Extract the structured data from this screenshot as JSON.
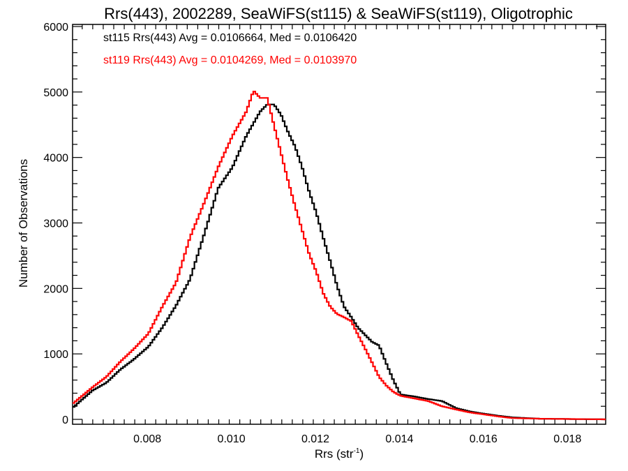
{
  "chart_data": {
    "type": "line",
    "style": "step-histogram",
    "title": "Rrs(443), 2002289, SeaWiFS(st115) & SeaWiFS(st119), Oligotrophic",
    "xlabel_base": "Rrs (str",
    "xlabel_sup": "-1",
    "xlabel_close": ")",
    "ylabel": "Number of Observations",
    "xlim": [
      0.00622,
      0.01891
    ],
    "ylim": [
      0,
      6000
    ],
    "x_ticks": [
      0.008,
      0.01,
      0.012,
      0.014,
      0.016,
      0.018
    ],
    "x_tick_labels": [
      "0.008",
      "0.010",
      "0.012",
      "0.014",
      "0.016",
      "0.018"
    ],
    "y_ticks": [
      0,
      1000,
      2000,
      3000,
      4000,
      5000,
      6000
    ],
    "y_tick_labels": [
      "0",
      "1000",
      "2000",
      "3000",
      "4000",
      "5000",
      "6000"
    ],
    "grid": false,
    "legend_position": "top-left",
    "annotations": [
      {
        "text": "st115 Rrs(443) Avg = 0.0106664, Med = 0.0106420",
        "color": "#000000"
      },
      {
        "text": "st119 Rrs(443) Avg = 0.0104269, Med = 0.0103970",
        "color": "#ff0000"
      }
    ],
    "series": [
      {
        "name": "st115",
        "color": "#000000",
        "x": [
          0.00622,
          0.00667,
          0.007,
          0.00733,
          0.00766,
          0.008,
          0.00833,
          0.00866,
          0.00899,
          0.00933,
          0.00966,
          0.01,
          0.01033,
          0.01066,
          0.01083,
          0.01099,
          0.01116,
          0.01133,
          0.01149,
          0.01166,
          0.01183,
          0.012,
          0.01216,
          0.01233,
          0.01249,
          0.01266,
          0.01283,
          0.01299,
          0.01316,
          0.01333,
          0.01349,
          0.01366,
          0.01383,
          0.014,
          0.01433,
          0.01466,
          0.01499,
          0.01533,
          0.01566,
          0.016,
          0.01633,
          0.01666,
          0.01699,
          0.01732,
          0.01799,
          0.01891
        ],
        "y": [
          190,
          440,
          560,
          760,
          920,
          1110,
          1400,
          1740,
          2140,
          2830,
          3530,
          3850,
          4330,
          4700,
          4810,
          4810,
          4650,
          4380,
          4170,
          3850,
          3470,
          3150,
          2780,
          2410,
          2040,
          1720,
          1560,
          1400,
          1290,
          1180,
          1130,
          860,
          600,
          380,
          350,
          310,
          280,
          170,
          120,
          85,
          55,
          30,
          20,
          10,
          5,
          0
        ]
      },
      {
        "name": "st119",
        "color": "#ff0000",
        "x": [
          0.00622,
          0.00667,
          0.007,
          0.00733,
          0.00766,
          0.008,
          0.00833,
          0.00866,
          0.00899,
          0.00933,
          0.00966,
          0.01,
          0.01033,
          0.0105,
          0.01066,
          0.01083,
          0.01099,
          0.01116,
          0.01133,
          0.01149,
          0.01166,
          0.01183,
          0.012,
          0.01216,
          0.01233,
          0.01249,
          0.01266,
          0.01283,
          0.01299,
          0.01316,
          0.01333,
          0.01349,
          0.01366,
          0.01383,
          0.014,
          0.01433,
          0.01466,
          0.01499,
          0.01533,
          0.01566,
          0.016,
          0.01633,
          0.01666,
          0.01732,
          0.01891
        ],
        "y": [
          250,
          490,
          650,
          880,
          1080,
          1310,
          1720,
          2090,
          2780,
          3310,
          3850,
          4330,
          4700,
          5020,
          4910,
          4910,
          4490,
          4060,
          3630,
          3260,
          2890,
          2520,
          2250,
          1930,
          1720,
          1610,
          1560,
          1500,
          1290,
          1080,
          860,
          650,
          520,
          420,
          360,
          320,
          280,
          200,
          150,
          105,
          75,
          45,
          20,
          10,
          0
        ]
      }
    ]
  }
}
